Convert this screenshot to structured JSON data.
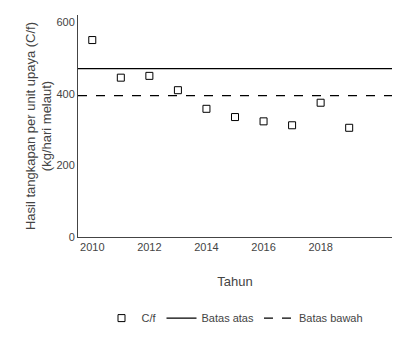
{
  "chart_data": {
    "type": "scatter",
    "x": [
      2010,
      2011,
      2012,
      2013,
      2014,
      2015,
      2016,
      2017,
      2018,
      2019
    ],
    "series": [
      {
        "name": "C/f",
        "color": "black",
        "marker": "square",
        "values": [
          550,
          445,
          450,
          410,
          358,
          335,
          323,
          312,
          375,
          305
        ]
      }
    ],
    "hlines": [
      {
        "name": "Batas atas",
        "value": 470,
        "color": "black",
        "line_style": "solid"
      },
      {
        "name": "Batas bawah",
        "value": 395,
        "color": "black",
        "line_style": "dash"
      }
    ],
    "xlabel": "Tahun",
    "ylabel": "Hasil tangkapan per unit upaya (C/f)\n(kg/hari melaut)",
    "xlim": [
      2009.5,
      2020.5
    ],
    "xticks": [
      2010,
      2012,
      2014,
      2016,
      2018
    ],
    "ylim": [
      0,
      620
    ],
    "yticks": [
      0,
      200,
      400,
      600
    ],
    "grid": false,
    "legend": "bottom"
  }
}
